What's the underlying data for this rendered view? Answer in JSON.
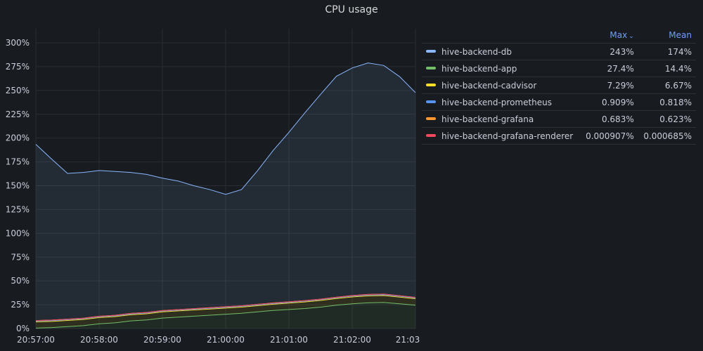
{
  "panel": {
    "title": "CPU usage"
  },
  "legend": {
    "col_max": "Max",
    "col_mean": "Mean",
    "sort_icon": "chevron-down-icon",
    "rows": [
      {
        "name": "hive-backend-db",
        "max": "243%",
        "mean": "174%",
        "color": "#8ab8ff"
      },
      {
        "name": "hive-backend-app",
        "max": "27.4%",
        "mean": "14.4%",
        "color": "#73bf69"
      },
      {
        "name": "hive-backend-cadvisor",
        "max": "7.29%",
        "mean": "6.67%",
        "color": "#fade2a"
      },
      {
        "name": "hive-backend-prometheus",
        "max": "0.909%",
        "mean": "0.818%",
        "color": "#5794f2"
      },
      {
        "name": "hive-backend-grafana",
        "max": "0.683%",
        "mean": "0.623%",
        "color": "#ff9830"
      },
      {
        "name": "hive-backend-grafana-renderer",
        "max": "0.000907%",
        "mean": "0.000685%",
        "color": "#f2495c"
      }
    ]
  },
  "chart_data": {
    "type": "area",
    "title": "CPU usage",
    "stacked": true,
    "xlabel": "",
    "ylabel": "",
    "ylim": [
      0,
      300
    ],
    "xlim": [
      "20:57:00",
      "21:03:00"
    ],
    "yticks": [
      "0%",
      "25%",
      "50%",
      "75%",
      "100%",
      "125%",
      "150%",
      "175%",
      "200%",
      "225%",
      "250%",
      "275%",
      "300%"
    ],
    "xticks": [
      "20:57:00",
      "20:58:00",
      "20:59:00",
      "21:00:00",
      "21:01:00",
      "21:02:00",
      "21:03"
    ],
    "grid": true,
    "legend_position": "right",
    "x": [
      "20:57:00",
      "20:57:15",
      "20:57:30",
      "20:57:45",
      "20:58:00",
      "20:58:15",
      "20:58:30",
      "20:58:45",
      "20:59:00",
      "20:59:15",
      "20:59:30",
      "20:59:45",
      "21:00:00",
      "21:00:15",
      "21:00:30",
      "21:00:45",
      "21:01:00",
      "21:01:15",
      "21:01:30",
      "21:01:45",
      "21:02:00",
      "21:02:15",
      "21:02:30",
      "21:02:45",
      "21:03:00"
    ],
    "series": [
      {
        "name": "hive-backend-app",
        "color": "#73bf69",
        "values": [
          0.5,
          1,
          2,
          3,
          5,
          6,
          8,
          9,
          11,
          12,
          13,
          14,
          15,
          16,
          17.5,
          19,
          20,
          21,
          22.5,
          24.5,
          26,
          27,
          27.4,
          26,
          24.5
        ]
      },
      {
        "name": "hive-backend-cadvisor",
        "color": "#fade2a",
        "values": [
          6.5,
          6.5,
          6.5,
          6.5,
          6.5,
          6.5,
          6.5,
          6.5,
          6.5,
          6.5,
          6.5,
          6.5,
          6.5,
          6.5,
          6.5,
          6.5,
          6.7,
          6.9,
          7.0,
          7.0,
          7.2,
          7.29,
          7.2,
          7.0,
          6.8
        ]
      },
      {
        "name": "hive-backend-prometheus",
        "color": "#5794f2",
        "values": [
          0.8,
          0.8,
          0.8,
          0.8,
          0.8,
          0.8,
          0.8,
          0.8,
          0.8,
          0.8,
          0.8,
          0.8,
          0.8,
          0.8,
          0.8,
          0.8,
          0.8,
          0.8,
          0.8,
          0.8,
          0.8,
          0.9,
          0.909,
          0.9,
          0.8
        ]
      },
      {
        "name": "hive-backend-grafana",
        "color": "#ff9830",
        "values": [
          0.6,
          0.6,
          0.6,
          0.6,
          0.6,
          0.6,
          0.6,
          0.6,
          0.6,
          0.6,
          0.6,
          0.6,
          0.6,
          0.6,
          0.6,
          0.6,
          0.6,
          0.6,
          0.6,
          0.6,
          0.6,
          0.683,
          0.683,
          0.6,
          0.6
        ]
      },
      {
        "name": "hive-backend-grafana-renderer",
        "color": "#f2495c",
        "values": [
          0.0007,
          0.0007,
          0.0007,
          0.0007,
          0.0007,
          0.0007,
          0.0007,
          0.0007,
          0.0007,
          0.0007,
          0.0007,
          0.0007,
          0.0007,
          0.0007,
          0.0007,
          0.0007,
          0.0007,
          0.0007,
          0.0007,
          0.0007,
          0.0007,
          0.0009,
          0.000907,
          0.0008,
          0.0007
        ]
      },
      {
        "name": "hive-backend-db",
        "color": "#8ab8ff",
        "values": [
          185,
          169,
          153,
          153,
          153,
          151,
          148,
          145,
          139,
          135,
          129,
          124,
          118,
          122,
          140,
          160,
          178,
          197,
          215,
          232,
          239,
          243,
          240,
          230,
          215
        ]
      }
    ]
  }
}
